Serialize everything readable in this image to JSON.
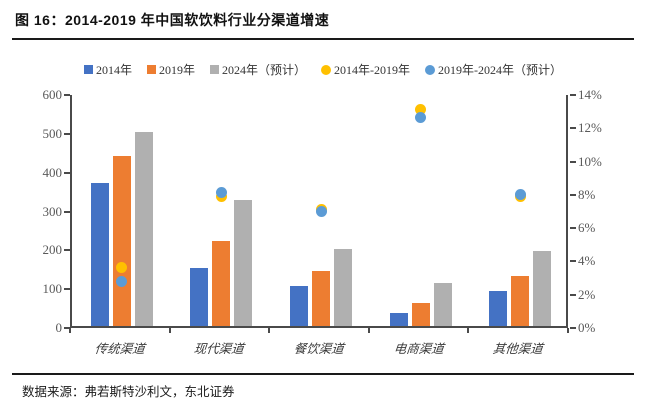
{
  "header": {
    "title": "图 16：2014-2019 年中国软饮料行业分渠道增速"
  },
  "footer": {
    "source": "数据来源：弗若斯特沙利文，东北证券"
  },
  "chart_data": {
    "type": "bar",
    "subtype": "grouped-bars-with-scatter-overlay",
    "title": "2014-2019 年中国软饮料行业分渠道增速",
    "categories": [
      "传统渠道",
      "现代渠道",
      "餐饮渠道",
      "电商渠道",
      "其他渠道"
    ],
    "bar_series": [
      {
        "name": "2014年",
        "color": "#4472C4",
        "axis": "left",
        "values": [
          367,
          150,
          102,
          33,
          90
        ]
      },
      {
        "name": "2019年",
        "color": "#ED7D31",
        "axis": "left",
        "values": [
          437,
          220,
          141,
          60,
          130
        ]
      },
      {
        "name": "2024年（预计）",
        "color": "#B0B0B0",
        "axis": "left",
        "values": [
          500,
          325,
          197,
          110,
          192
        ]
      }
    ],
    "dot_series": [
      {
        "name": "2014年-2019年",
        "color": "#FFC000",
        "axis": "right",
        "values_pct": [
          3.5,
          7.8,
          7.0,
          13.0,
          7.8
        ]
      },
      {
        "name": "2019年-2024年（预计）",
        "color": "#5B9BD5",
        "axis": "right",
        "values_pct": [
          2.7,
          8.0,
          6.9,
          12.5,
          7.9
        ]
      }
    ],
    "left_axis": {
      "min": 0,
      "max": 600,
      "tick_values": [
        0,
        100,
        200,
        300,
        400,
        500,
        600
      ]
    },
    "right_axis": {
      "min": 0,
      "max": 14,
      "tick_values": [
        0,
        2,
        4,
        6,
        8,
        10,
        12,
        14
      ],
      "tick_labels": [
        "0%",
        "2%",
        "4%",
        "6%",
        "8%",
        "10%",
        "12%",
        "14%"
      ]
    },
    "legend_position": "top",
    "grid": false
  }
}
